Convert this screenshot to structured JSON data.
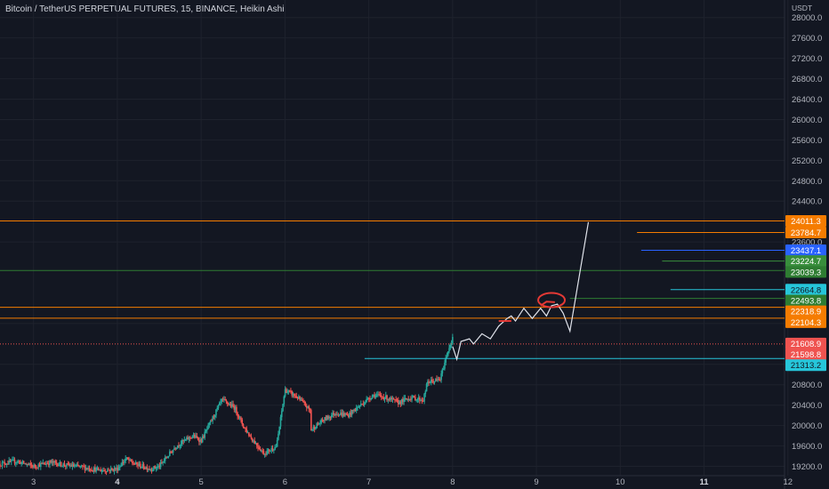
{
  "chart_data": {
    "type": "candlestick",
    "title": "Bitcoin / TetherUS PERPETUAL FUTURES, 15, BINANCE, Heikin Ashi",
    "y_axis_unit": "USDT",
    "ylim": [
      19000,
      28100
    ],
    "y_ticks": [
      {
        "value": 28000,
        "label": "28000.0"
      },
      {
        "value": 27600,
        "label": "27600.0"
      },
      {
        "value": 27200,
        "label": "27200.0"
      },
      {
        "value": 26800,
        "label": "26800.0"
      },
      {
        "value": 26400,
        "label": "26400.0"
      },
      {
        "value": 26000,
        "label": "26000.0"
      },
      {
        "value": 25600,
        "label": "25600.0"
      },
      {
        "value": 25200,
        "label": "25200.0"
      },
      {
        "value": 24800,
        "label": "24800.0"
      },
      {
        "value": 24400,
        "label": "24400.0"
      },
      {
        "value": 23600,
        "label": "23600.0"
      },
      {
        "value": 22000,
        "label": "22000.0"
      },
      {
        "value": 21200,
        "label": "21200.0"
      },
      {
        "value": 20800,
        "label": "20800.0"
      },
      {
        "value": 20400,
        "label": "20400.0"
      },
      {
        "value": 20000,
        "label": "20000.0"
      },
      {
        "value": 19600,
        "label": "19600.0"
      },
      {
        "value": 19200,
        "label": "19200.0"
      }
    ],
    "x_range": [
      2.6,
      11.96
    ],
    "x_ticks": [
      {
        "value": 3,
        "label": "3",
        "bold": false
      },
      {
        "value": 4,
        "label": "4",
        "bold": true
      },
      {
        "value": 5,
        "label": "5",
        "bold": false
      },
      {
        "value": 6,
        "label": "6",
        "bold": false
      },
      {
        "value": 7,
        "label": "7",
        "bold": false
      },
      {
        "value": 8,
        "label": "8",
        "bold": false
      },
      {
        "value": 9,
        "label": "9",
        "bold": false
      },
      {
        "value": 10,
        "label": "10",
        "bold": false
      },
      {
        "value": 11,
        "label": "11",
        "bold": true
      },
      {
        "value": 12,
        "label": "12",
        "bold": false
      }
    ],
    "series_path": [
      [
        2.6,
        19250
      ],
      [
        2.8,
        19300
      ],
      [
        3.0,
        19200
      ],
      [
        3.2,
        19280
      ],
      [
        3.4,
        19220
      ],
      [
        3.6,
        19180
      ],
      [
        3.8,
        19120
      ],
      [
        4.0,
        19150
      ],
      [
        4.1,
        19350
      ],
      [
        4.2,
        19250
      ],
      [
        4.4,
        19150
      ],
      [
        4.5,
        19200
      ],
      [
        4.7,
        19600
      ],
      [
        4.9,
        19800
      ],
      [
        5.0,
        19700
      ],
      [
        5.2,
        20350
      ],
      [
        5.25,
        20500
      ],
      [
        5.4,
        20350
      ],
      [
        5.5,
        20000
      ],
      [
        5.6,
        19750
      ],
      [
        5.75,
        19450
      ],
      [
        5.9,
        19600
      ],
      [
        6.0,
        20700
      ],
      [
        6.15,
        20550
      ],
      [
        6.3,
        20300
      ],
      [
        6.3,
        19900
      ],
      [
        6.45,
        20100
      ],
      [
        6.6,
        20250
      ],
      [
        6.75,
        20200
      ],
      [
        6.9,
        20400
      ],
      [
        7.05,
        20600
      ],
      [
        7.2,
        20550
      ],
      [
        7.35,
        20450
      ],
      [
        7.5,
        20550
      ],
      [
        7.65,
        20500
      ],
      [
        7.7,
        20850
      ],
      [
        7.85,
        20900
      ],
      [
        7.95,
        21500
      ],
      [
        8.0,
        21700
      ]
    ],
    "price_lines": [
      {
        "value": 24011.3,
        "label": "24011.3",
        "color": "#f57c00",
        "x_start": 2.6
      },
      {
        "value": 23784.7,
        "label": "23784.7",
        "color": "#f57c00",
        "x_start": 10.2
      },
      {
        "value": 23437.1,
        "label": "23437.1",
        "color": "#2962ff",
        "x_start": 10.25
      },
      {
        "value": 23224.7,
        "label": "23224.7",
        "color": "#388e3c",
        "x_start": 10.5
      },
      {
        "value": 23039.3,
        "label": "23039.3",
        "color": "#2e7d32",
        "x_start": 2.6
      },
      {
        "value": 22664.8,
        "label": "22664.8",
        "color": "#26c6da",
        "x_start": 10.6
      },
      {
        "value": 22493.8,
        "label": "22493.8",
        "color": "#2e7d32",
        "x_start": 9.4
      },
      {
        "value": 22318.9,
        "label": "22318.9",
        "color": "#f57c00",
        "x_start": 2.6
      },
      {
        "value": 22104.3,
        "label": "22104.3",
        "color": "#f57c00",
        "x_start": 2.6
      },
      {
        "value": 21608.9,
        "label": "21608.9",
        "color": "#ef5350",
        "x_start": null
      },
      {
        "value": 21598.8,
        "label": "21598.8",
        "color": "#ef5350",
        "x_start": 2.6,
        "dotted": true
      },
      {
        "value": 21313.2,
        "label": "21313.2",
        "color": "#26c6da",
        "x_start": 6.95
      }
    ],
    "projection": [
      [
        8.0,
        21550
      ],
      [
        8.05,
        21300
      ],
      [
        8.1,
        21650
      ],
      [
        8.2,
        21700
      ],
      [
        8.25,
        21600
      ],
      [
        8.35,
        21800
      ],
      [
        8.45,
        21700
      ],
      [
        8.55,
        21950
      ],
      [
        8.65,
        22100
      ],
      [
        8.7,
        22150
      ],
      [
        8.75,
        22050
      ],
      [
        8.85,
        22300
      ],
      [
        8.95,
        22100
      ],
      [
        9.05,
        22300
      ],
      [
        9.12,
        22150
      ],
      [
        9.18,
        22350
      ],
      [
        9.25,
        22380
      ],
      [
        9.32,
        22200
      ],
      [
        9.4,
        21850
      ],
      [
        9.62,
        23990
      ]
    ],
    "highlight_segments": [
      {
        "color": "#e53935",
        "points": [
          [
            8.55,
            22050
          ],
          [
            8.7,
            22050
          ]
        ]
      },
      {
        "color": "#e53935",
        "points": [
          [
            9.05,
            22350
          ],
          [
            9.12,
            22430
          ],
          [
            9.22,
            22420
          ]
        ]
      }
    ],
    "circle_annotation": {
      "x": 9.18,
      "y": 22460,
      "color": "#e53935"
    }
  }
}
